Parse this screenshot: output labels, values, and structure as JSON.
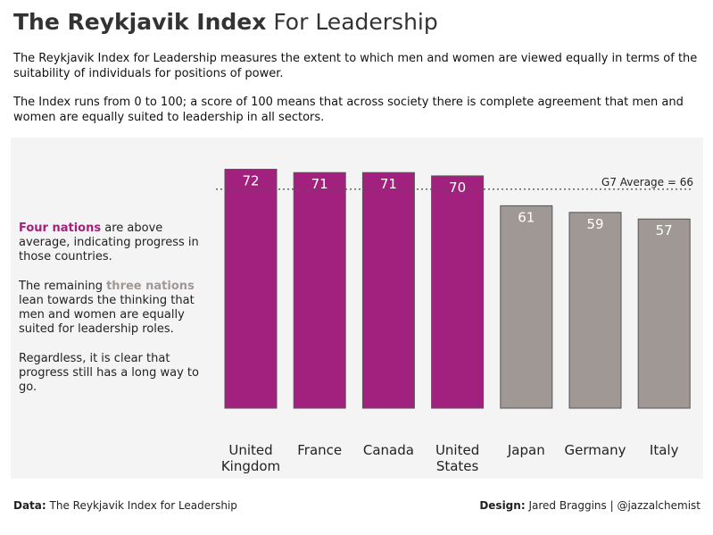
{
  "header": {
    "title_bold": "The Reykjavik Index",
    "title_light": "For Leadership",
    "description_1": "The Reykjavik Index for Leadership measures the extent to which men and women are viewed equally in terms of the suitability of individuals for positions of power.",
    "description_2": "The Index runs from 0 to 100; a score of 100 means that across society there is complete agreement that men and women are equally suited to leadership in all sectors."
  },
  "annotations": {
    "para1_highlight": "Four nations",
    "para1_rest": " are above average, indicating progress in those countries.",
    "para2_start": "The remaining ",
    "para2_highlight": "three nations",
    "para2_rest": " lean towards the thinking that men and women are equally suited for leadership roles.",
    "para3": "Regardless, it is clear that progress still has a long way to go."
  },
  "footer": {
    "data_label": "Data:",
    "data_value": "The Reykjavik Index for Leadership",
    "design_label": "Design:",
    "design_value": "Jared Braggins | @jazzalchemist"
  },
  "colors": {
    "above_average": "#a3217e",
    "below_average": "#a09895",
    "panel_background": "#f4f4f4",
    "average_line": "#555555"
  },
  "chart_data": {
    "type": "bar",
    "categories": [
      [
        "United",
        "Kingdom"
      ],
      [
        "France"
      ],
      [
        "Canada"
      ],
      [
        "United",
        "States"
      ],
      [
        "Japan"
      ],
      [
        "Germany"
      ],
      [
        "Italy"
      ]
    ],
    "values": [
      72,
      71,
      71,
      70,
      61,
      59,
      57
    ],
    "above_average": [
      true,
      true,
      true,
      true,
      false,
      false,
      false
    ],
    "reference_line": {
      "value": 66,
      "label": "G7 Average = 66"
    },
    "ylim": [
      0,
      100
    ],
    "grid": false,
    "legend": "none"
  }
}
